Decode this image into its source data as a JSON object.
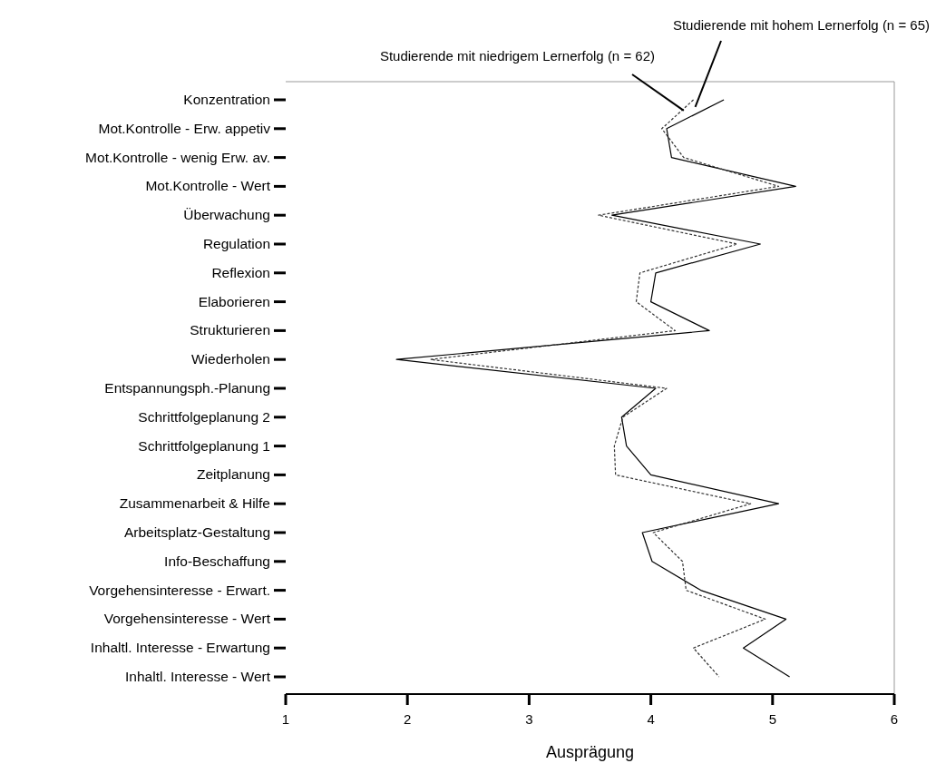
{
  "chart_data": {
    "type": "line",
    "orientation": "horizontal",
    "xlabel": "Ausprägung",
    "categories": [
      "Konzentration",
      "Mot.Kontrolle - Erw. appetiv",
      "Mot.Kontrolle - wenig Erw. av.",
      "Mot.Kontrolle - Wert",
      "Überwachung",
      "Regulation",
      "Reflexion",
      "Elaborieren",
      "Strukturieren",
      "Wiederholen",
      "Entspannungsph.-Planung",
      "Schrittfolgeplanung 2",
      "Schrittfolgeplanung 1",
      "Zeitplanung",
      "Zusammenarbeit & Hilfe",
      "Arbeitsplatz-Gestaltung",
      "Info-Beschaffung",
      "Vorgehensinteresse - Erwart.",
      "Vorgehensinteresse - Wert",
      "Inhaltl. Interesse - Erwartung",
      "Inhaltl. Interesse - Wert"
    ],
    "series": [
      {
        "name": "Studierende mit hohem Lernerfolg (n = 65)",
        "color": "#000000",
        "line_style": "solid",
        "values": [
          4.6,
          4.13,
          4.17,
          5.19,
          3.68,
          4.9,
          4.04,
          4.0,
          4.48,
          1.91,
          4.04,
          3.76,
          3.8,
          4.0,
          5.05,
          3.93,
          4.01,
          4.41,
          5.11,
          4.76,
          5.14
        ]
      },
      {
        "name": "Studierende mit niedrigem Lernerfolg (n = 62)",
        "color": "#333333",
        "line_style": "dashed",
        "values": [
          4.35,
          4.09,
          4.27,
          5.05,
          3.57,
          4.71,
          3.91,
          3.88,
          4.2,
          2.19,
          4.13,
          3.77,
          3.7,
          3.71,
          4.82,
          4.02,
          4.26,
          4.29,
          4.94,
          4.35,
          4.56
        ]
      }
    ],
    "xlim": [
      1,
      6
    ],
    "xticks": [
      1,
      2,
      3,
      4,
      5,
      6
    ],
    "legend": false,
    "marker": "none"
  }
}
